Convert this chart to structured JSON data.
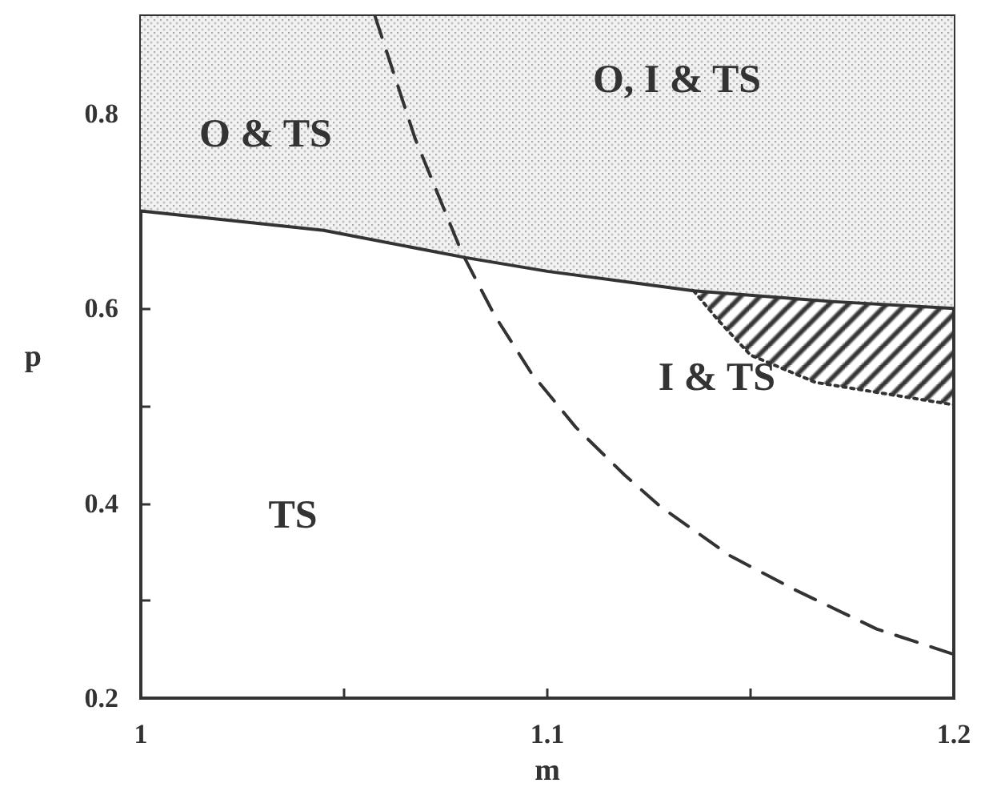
{
  "chart_data": {
    "type": "line",
    "xlabel": "m",
    "ylabel": "p",
    "xlim": [
      1,
      1.2
    ],
    "ylim": [
      0.2,
      0.9
    ],
    "xticks": [
      1,
      {
        "value": 1.05,
        "label": null
      },
      1.1,
      {
        "value": 1.15,
        "label": null
      },
      1.2
    ],
    "yticks": [
      0.2,
      {
        "value": 0.3,
        "label": null
      },
      0.4,
      {
        "value": 0.5,
        "label": null
      },
      0.6,
      {
        "value": 0.7,
        "label": null
      },
      0.8
    ],
    "grid": false,
    "marker": "none",
    "line_style": "solid",
    "series": [
      {
        "color": "#333333",
        "x": [
          1,
          1.045,
          1.08,
          1.1,
          1.136,
          1.17,
          1.2
        ],
        "values": [
          0.7,
          0.68,
          0.652,
          0.638,
          0.618,
          0.607,
          0.6
        ],
        "lower": [
          0.7,
          0.68,
          0.652,
          0.638,
          0.618,
          0.607,
          0.6
        ],
        "upper": [
          0.9,
          0.9,
          0.9,
          0.9,
          0.9,
          0.9,
          0.9
        ]
      },
      {
        "line_style": "dashed",
        "color": "#333333",
        "x": [
          1.0576,
          1.0675,
          1.079,
          1.087,
          1.096,
          1.107,
          1.119,
          1.128,
          1.145,
          1.161,
          1.181,
          1.2
        ],
        "values": [
          0.9,
          0.774,
          0.657,
          0.593,
          0.534,
          0.478,
          0.429,
          0.396,
          0.346,
          0.311,
          0.271,
          0.245
        ]
      },
      {
        "line_style": "dotted",
        "color": "#333333",
        "x": [
          1.136,
          1.142,
          1.15,
          1.166,
          1.2
        ],
        "values": [
          0.618,
          0.588,
          0.552,
          0.524,
          0.501
        ],
        "lower": [
          0.618,
          0.588,
          0.552,
          0.524,
          0.501
        ],
        "upper": [
          0.618,
          0.616,
          0.613,
          0.608,
          0.6
        ]
      }
    ],
    "annotations": [
      "O & TS",
      "O, I & TS",
      "I & TS",
      "TS"
    ]
  }
}
